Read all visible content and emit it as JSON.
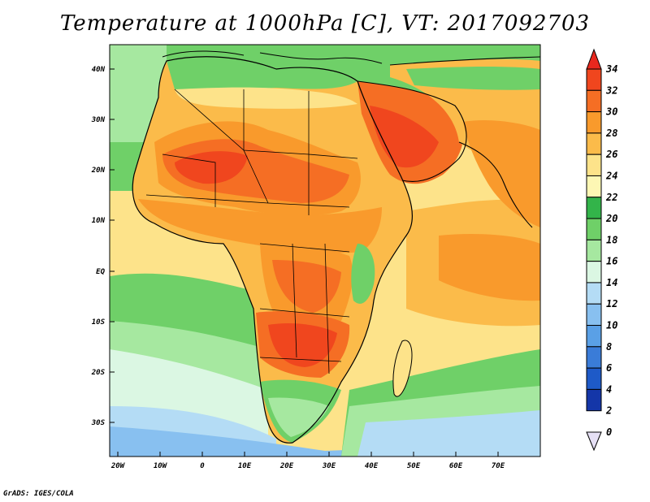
{
  "title": "Temperature at 1000hPa [C], VT: 2017092703",
  "credit": "GrADS: IGES/COLA",
  "map": {
    "lon_range": [
      -23,
      80
    ],
    "lat_range": [
      -36,
      45
    ],
    "lon_ticks": [
      "20W",
      "10W",
      "0",
      "10E",
      "20E",
      "30E",
      "40E",
      "50E",
      "60E",
      "70E"
    ],
    "lat_ticks": [
      "40N",
      "30N",
      "20N",
      "10N",
      "EQ",
      "10S",
      "20S",
      "30S"
    ]
  },
  "colorbar": {
    "labels": [
      "34",
      "32",
      "30",
      "28",
      "26",
      "24",
      "22",
      "20",
      "18",
      "16",
      "14",
      "12",
      "10",
      "8",
      "6",
      "4",
      "2",
      "0"
    ],
    "colors": [
      "#e8281e",
      "#f0461e",
      "#f56e24",
      "#f99a2c",
      "#fbbb4a",
      "#fde38a",
      "#fdf7b4",
      "#33b44a",
      "#6fd068",
      "#a6e8a0",
      "#dbf7e3",
      "#b4dcf5",
      "#88c0f0",
      "#5aa0e6",
      "#3a7cd8",
      "#1e5ac8",
      "#1436a8",
      "#0a1478"
    ]
  },
  "annotations": {
    "icon_top": "triangle-up-icon",
    "icon_bottom": "triangle-down-icon"
  }
}
